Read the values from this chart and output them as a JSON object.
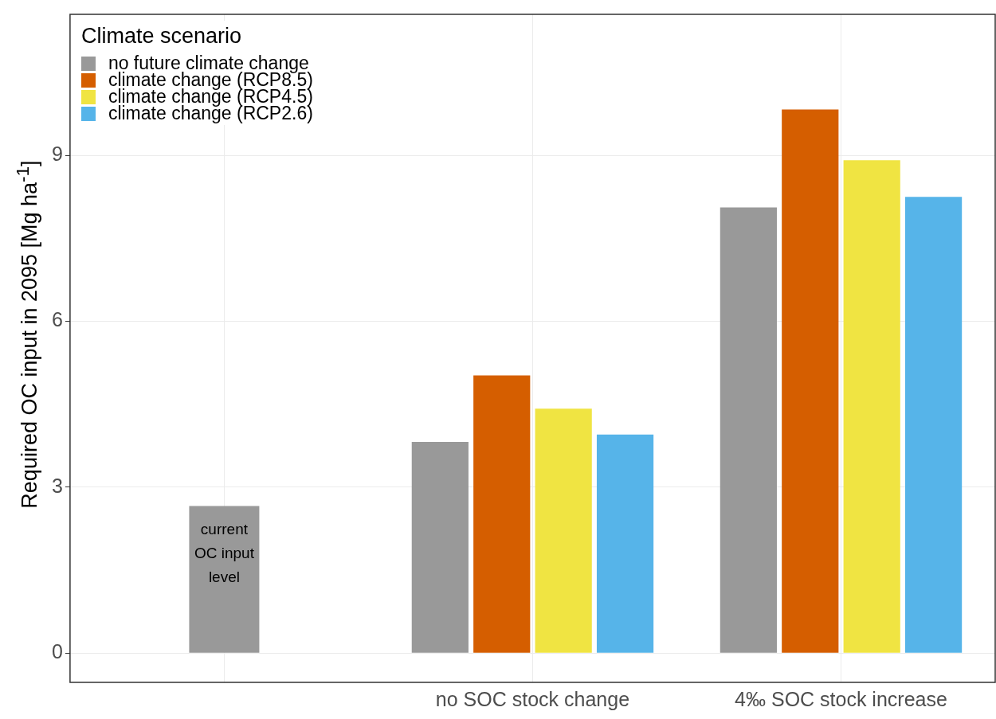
{
  "chart_data": {
    "type": "bar",
    "ylabel": "Required OC input in 2095 [Mg ha$^{-1}$]",
    "legend_title": "Climate scenario",
    "categories": [
      null,
      "no SOC stock change",
      "4‰ SOC stock increase"
    ],
    "series": [
      {
        "name": "no future climate change",
        "color": "#999999",
        "values": [
          2.66,
          3.82,
          8.06
        ]
      },
      {
        "name": "climate change (RCP8.5)",
        "color": "#d55e00",
        "values": [
          null,
          5.02,
          9.83
        ]
      },
      {
        "name": "climate change (RCP4.5)",
        "color": "#f0e442",
        "values": [
          null,
          4.42,
          8.91
        ]
      },
      {
        "name": "climate change (RCP2.6)",
        "color": "#56b4e9",
        "values": [
          null,
          3.95,
          8.25
        ]
      }
    ],
    "ylim": [
      -0.53,
      11.55
    ],
    "yticks": [
      0,
      3,
      6,
      9
    ],
    "grid": true,
    "legend": "top left",
    "annotations": [
      "current OC input level"
    ]
  }
}
